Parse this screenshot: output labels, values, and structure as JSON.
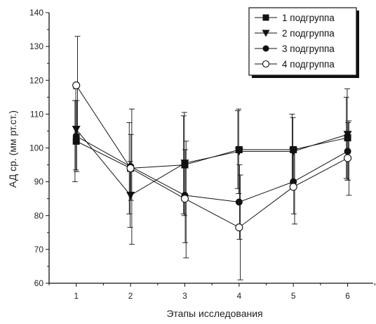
{
  "chart_data": {
    "type": "line",
    "title": "",
    "xlabel": "Этапы исследования",
    "ylabel": "АД ср. (мм рт.ст.)",
    "xlim": [
      0.5,
      6.6
    ],
    "ylim": [
      60,
      140
    ],
    "xticks": [
      1,
      2,
      3,
      4,
      5,
      6
    ],
    "yticks": [
      60,
      70,
      80,
      90,
      100,
      110,
      120,
      130,
      140
    ],
    "x": [
      1,
      2,
      3,
      4,
      5,
      6
    ],
    "grid": false,
    "legend_position": "top-right",
    "series": [
      {
        "name": "1 подгруппа",
        "marker": "filled-square",
        "values": [
          102,
          94,
          95,
          99.5,
          99.5,
          103
        ],
        "error_low": [
          90,
          80.5,
          80.5,
          88,
          89.5,
          91
        ],
        "error_high": [
          114,
          107.5,
          109.5,
          111,
          110,
          115
        ]
      },
      {
        "name": "2 подгруппа",
        "marker": "filled-triangle-down",
        "values": [
          105.5,
          86,
          95.5,
          99,
          99,
          104
        ],
        "error_low": [
          93.5,
          76.5,
          80,
          86.5,
          89,
          90.5
        ],
        "error_high": [
          117.5,
          96,
          110.5,
          111.5,
          109,
          117.5
        ]
      },
      {
        "name": "3 подгруппа",
        "marker": "filled-circle",
        "values": [
          103.5,
          94.5,
          86,
          84,
          90,
          99
        ],
        "error_low": [
          93,
          84.5,
          72,
          73,
          80.5,
          90.5
        ],
        "error_high": [
          114,
          104,
          99.5,
          95,
          99.5,
          107.5
        ]
      },
      {
        "name": "4 подгруппа",
        "marker": "open-circle",
        "values": [
          118.5,
          94,
          85,
          76.5,
          88.5,
          97
        ],
        "error_low": [
          104,
          71.5,
          67.5,
          61,
          77.5,
          86
        ],
        "error_high": [
          133,
          111.5,
          102,
          92,
          99.5,
          108
        ]
      }
    ]
  },
  "colors": {
    "line": "#111111",
    "axis": "#111111",
    "background": "#ffffff"
  }
}
